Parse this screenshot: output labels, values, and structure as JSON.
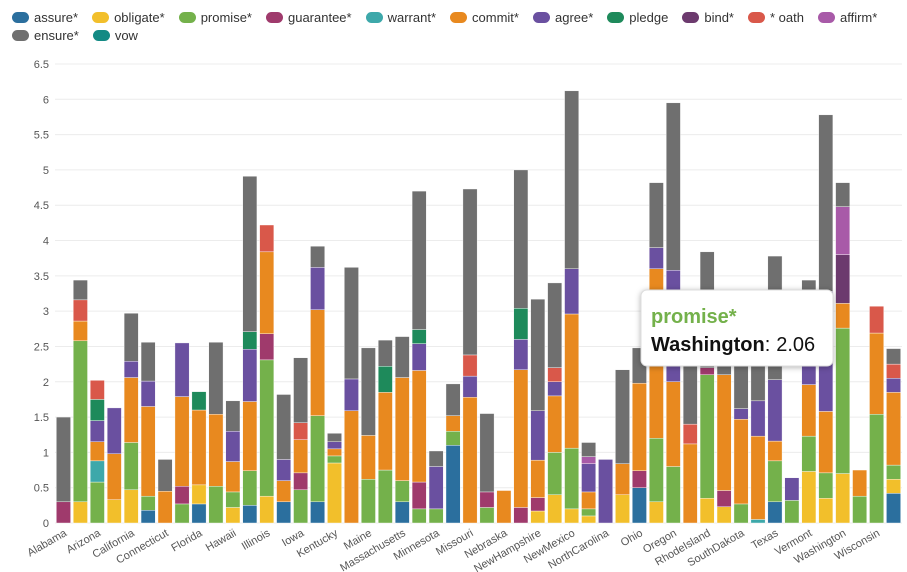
{
  "chart_data": {
    "type": "stacked_bar",
    "categories": [
      "Alabama",
      null,
      "Arizona",
      null,
      "California",
      null,
      "Connecticut",
      null,
      "Florida",
      null,
      "Hawaii",
      null,
      "Illinois",
      null,
      "Iowa",
      null,
      "Kentucky",
      null,
      "Maine",
      null,
      "Massachusetts",
      null,
      "Minnesota",
      null,
      "Missouri",
      null,
      "Nebraska",
      null,
      "NewHampshire",
      null,
      "NewMexico",
      null,
      "NorthCarolina",
      null,
      "Ohio",
      null,
      "Oregon",
      null,
      "RhodeIsland",
      null,
      "SouthDakota",
      null,
      "Texas",
      null,
      "Vermont",
      null,
      "Washington",
      null,
      "Wisconsin",
      null
    ],
    "ylim": [
      0,
      6.5
    ],
    "yticks": [
      0,
      0.5,
      1,
      1.5,
      2,
      2.5,
      3,
      3.5,
      4,
      4.5,
      5,
      5.5,
      6,
      6.5
    ],
    "grid": true,
    "series": [
      {
        "name": "assure*",
        "color": "#2b6f9e",
        "values": [
          0,
          0,
          0,
          0,
          0,
          0.18,
          0,
          0,
          0.27,
          0,
          0,
          0.25,
          0,
          0.3,
          0,
          0.3,
          0,
          0,
          0,
          0,
          0.3,
          0,
          0,
          1.1,
          0,
          0,
          0,
          0,
          0,
          0,
          0,
          0,
          0,
          0,
          0.5,
          0,
          0,
          0,
          0,
          0,
          0,
          0,
          0.3,
          0,
          0,
          0,
          0,
          0,
          0,
          0.42
        ]
      },
      {
        "name": "obligate*",
        "color": "#f2bf2b",
        "values": [
          0,
          0.3,
          0,
          0.33,
          0.47,
          0,
          0,
          0,
          0.27,
          0,
          0.22,
          0,
          0.38,
          0,
          0,
          0,
          0.85,
          0,
          0,
          0,
          0,
          0,
          0,
          0,
          0,
          0,
          0,
          0,
          0.17,
          0.4,
          0.2,
          0.1,
          0,
          0.4,
          0,
          0.3,
          0,
          0,
          0.35,
          0.23,
          0,
          0,
          0,
          0,
          0.73,
          0.35,
          0.7,
          0,
          0,
          0.2
        ]
      },
      {
        "name": "promise*",
        "color": "#74b14b",
        "values": [
          0,
          2.28,
          0.58,
          0,
          0.67,
          0.2,
          0,
          0.27,
          0,
          0.52,
          0.22,
          0.49,
          1.93,
          0,
          0.47,
          1.22,
          0.1,
          0,
          0.62,
          0.75,
          0.3,
          0.2,
          0.2,
          0.2,
          0,
          0.22,
          0,
          0,
          0,
          0.6,
          0.86,
          0.1,
          0,
          0,
          0,
          0.9,
          0.8,
          0,
          1.75,
          0,
          0.27,
          0,
          0.58,
          0.32,
          0.5,
          0.36,
          2.06,
          0.38,
          1.54,
          0.2
        ]
      },
      {
        "name": "guarantee*",
        "color": "#9f3a6c",
        "values": [
          0.3,
          0,
          0,
          0,
          0,
          0,
          0,
          0.25,
          0,
          0,
          0,
          0,
          0.37,
          0,
          0.24,
          0,
          0,
          0,
          0,
          0,
          0,
          0.38,
          0,
          0,
          0,
          0.22,
          0,
          0.22,
          0.19,
          0,
          0,
          0,
          0,
          0,
          0.24,
          0,
          0,
          0,
          0.1,
          0.23,
          0,
          0,
          0,
          0,
          0,
          0,
          0,
          0,
          0,
          0
        ]
      },
      {
        "name": "warrant*",
        "color": "#3da8aa",
        "values": [
          0,
          0,
          0.3,
          0,
          0,
          0,
          0,
          0,
          0,
          0,
          0,
          0,
          0,
          0,
          0,
          0,
          0,
          0,
          0,
          0,
          0,
          0,
          0,
          0,
          0,
          0,
          0,
          0,
          0,
          0,
          0,
          0,
          0,
          0,
          0,
          0,
          0,
          0,
          0,
          0,
          0,
          0.05,
          0,
          0,
          0,
          0,
          0,
          0,
          0,
          0
        ]
      },
      {
        "name": "commit*",
        "color": "#e8891f",
        "values": [
          0,
          0.28,
          0.27,
          0.65,
          0.92,
          1.27,
          0.45,
          1.27,
          1.06,
          1.02,
          0.43,
          0.98,
          1.16,
          0.3,
          0.47,
          1.5,
          0.1,
          1.59,
          0.62,
          1.1,
          1.46,
          1.58,
          0,
          0.22,
          1.78,
          0,
          0.46,
          1.95,
          0.53,
          0.8,
          1.9,
          0.24,
          0,
          0.44,
          1.24,
          2.4,
          1.2,
          1.12,
          0,
          1.64,
          1.2,
          1.18,
          0.28,
          0,
          0.73,
          0.87,
          0.35,
          0.37,
          1.15,
          1.03
        ]
      },
      {
        "name": "agree*",
        "color": "#6a50a0",
        "values": [
          0,
          0,
          0.3,
          0.65,
          0.23,
          0.36,
          0,
          0.76,
          0,
          0,
          0.43,
          0.74,
          0,
          0.3,
          0,
          0.6,
          0.1,
          0.45,
          0,
          0,
          0,
          0.38,
          0.6,
          0,
          0.3,
          0,
          0,
          0.43,
          0.7,
          0.2,
          0.64,
          0.4,
          0.9,
          0,
          0,
          0.3,
          1.58,
          0,
          0,
          0,
          0.15,
          0.5,
          0.87,
          0.32,
          0.8,
          1.7,
          0,
          0,
          0,
          0.2
        ]
      },
      {
        "name": "pledge",
        "color": "#1e8a5b",
        "values": [
          0,
          0,
          0.3,
          0,
          0,
          0,
          0,
          0,
          0.26,
          0,
          0,
          0.25,
          0,
          0,
          0,
          0,
          0,
          0,
          0,
          0.37,
          0,
          0.2,
          0,
          0,
          0,
          0,
          0,
          0.44,
          0,
          0,
          0,
          0,
          0,
          0,
          0,
          0,
          0,
          0,
          0,
          0,
          0,
          0,
          0,
          0,
          0,
          0,
          0,
          0,
          0,
          0
        ]
      },
      {
        "name": "bind*",
        "color": "#6c3a6e",
        "values": [
          0,
          0,
          0,
          0,
          0,
          0,
          0,
          0,
          0,
          0,
          0,
          0,
          0,
          0,
          0,
          0,
          0,
          0,
          0,
          0,
          0,
          0,
          0,
          0,
          0,
          0,
          0,
          0,
          0,
          0,
          0,
          0,
          0,
          0,
          0,
          0,
          0,
          0,
          0,
          0,
          0,
          0,
          0,
          0,
          0,
          0,
          0.69,
          0,
          0,
          0
        ]
      },
      {
        "name": "* oath",
        "color": "#d9584a",
        "values": [
          0,
          0.3,
          0.27,
          0,
          0,
          0,
          0,
          0,
          0,
          0,
          0,
          0,
          0.38,
          0,
          0.24,
          0,
          0,
          0,
          0,
          0,
          0,
          0,
          0,
          0,
          0.3,
          0,
          0,
          0,
          0,
          0.2,
          0,
          0,
          0,
          0,
          0,
          0,
          0,
          0.28,
          0,
          0,
          0,
          0,
          0,
          0,
          0,
          0,
          0,
          0,
          0.38,
          0.2
        ]
      },
      {
        "name": "affirm*",
        "color": "#a85aa8",
        "values": [
          0,
          0,
          0,
          0,
          0,
          0,
          0,
          0,
          0,
          0,
          0,
          0,
          0,
          0,
          0,
          0,
          0,
          0,
          0,
          0,
          0,
          0,
          0,
          0,
          0,
          0,
          0,
          0,
          0,
          0,
          0,
          0.1,
          0,
          0,
          0,
          0,
          0,
          0,
          0,
          0,
          0,
          0,
          0,
          0,
          0,
          0,
          0.68,
          0,
          0,
          0
        ]
      },
      {
        "name": "ensure*",
        "color": "#6f6f6f",
        "values": [
          1.2,
          0.28,
          0,
          0,
          0.68,
          0.55,
          0.45,
          0,
          0,
          1.02,
          0.43,
          2.2,
          0,
          0.92,
          0.92,
          0.3,
          0.12,
          1.58,
          1.24,
          0.37,
          0.58,
          1.96,
          0.22,
          0.45,
          2.35,
          1.11,
          0,
          1.96,
          1.58,
          1.2,
          2.52,
          0.2,
          0,
          1.33,
          0.5,
          0.92,
          2.37,
          1.2,
          1.64,
          0.4,
          0.6,
          0.6,
          1.75,
          0,
          0.68,
          2.5,
          0.34,
          0,
          0,
          0.22
        ]
      },
      {
        "name": "vow",
        "color": "#138a84",
        "values": [
          0,
          0,
          0,
          0,
          0,
          0,
          0,
          0,
          0,
          0,
          0,
          0,
          0,
          0,
          0,
          0,
          0,
          0,
          0,
          0,
          0,
          0,
          0,
          0,
          0,
          0,
          0,
          0,
          0,
          0,
          0,
          0,
          0,
          0,
          0,
          0,
          0,
          0,
          0,
          0,
          0,
          0,
          0,
          0,
          0,
          0,
          0,
          0,
          0,
          0
        ]
      }
    ],
    "tooltip": {
      "series": "promise*",
      "category": "Washington",
      "separator": ":",
      "value": 2.06
    }
  }
}
